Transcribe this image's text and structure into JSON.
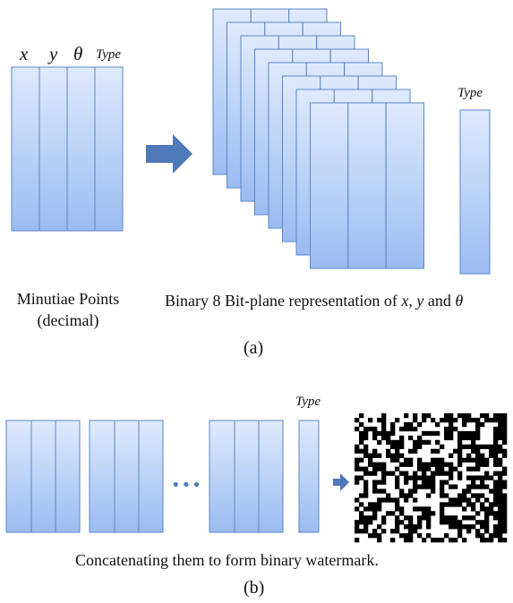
{
  "panel_a": {
    "column_labels": [
      "x",
      "y",
      "θ",
      "Type"
    ],
    "left_caption": {
      "line1": "Minutiae Points",
      "line2": "(decimal)"
    },
    "right_caption_text": "Binary 8 Bit-plane representation of",
    "right_caption_vars": "x, y",
    "right_caption_and": "and",
    "right_caption_theta": "θ",
    "type_label": "Type",
    "bit_plane_count": 8,
    "sublabel": "(a)"
  },
  "panel_b": {
    "type_label": "Type",
    "ellipsis": "•••",
    "caption": "Concatenating them to form binary watermark.",
    "sublabel": "(b)"
  },
  "colors": {
    "column_fill_top": "#d6e6fc",
    "column_fill_bottom": "#9fbff2",
    "column_stroke": "#5b86c8",
    "arrow": "#4f79b8",
    "ellipsis": "#4f79b8"
  }
}
